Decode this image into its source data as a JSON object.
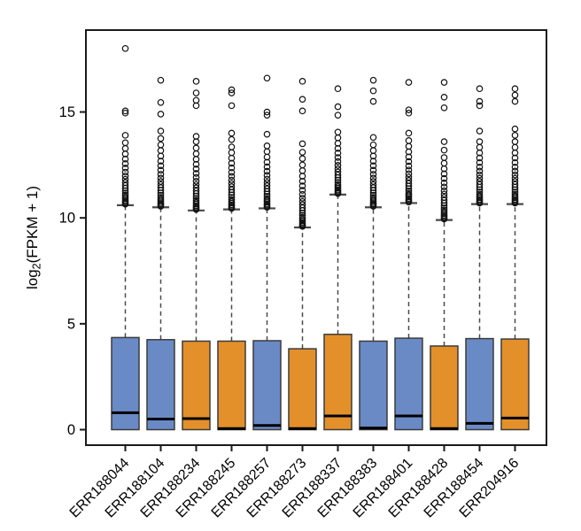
{
  "figure": {
    "background": "#ffffff"
  },
  "chart_data": {
    "type": "boxplot",
    "title": "",
    "xlabel": "",
    "ylabel_parts": {
      "pre": "log",
      "sub": "2",
      "post": "(FPKM + 1)"
    },
    "ylim": [
      0,
      18.9
    ],
    "ytick_labels": [
      "0",
      "5",
      "10",
      "15"
    ],
    "ytick_values": [
      0,
      5,
      10,
      15
    ],
    "grid": false,
    "legend": null,
    "categories": [
      "ERR188044",
      "ERR188104",
      "ERR188234",
      "ERR188245",
      "ERR188257",
      "ERR188273",
      "ERR188337",
      "ERR188383",
      "ERR188401",
      "ERR188428",
      "ERR188454",
      "ERR204916"
    ],
    "group_colors": {
      "blue": "#6a8ac6",
      "orange": "#e3902b"
    },
    "style": {
      "box_border": "#3b3b3b",
      "median_color": "#000000",
      "whisker_color": "#4a4a4a",
      "outlier_color": "#111111",
      "axis_color": "#1a1a1a",
      "text_color": "#000000",
      "background": "#ffffff"
    },
    "boxes": [
      {
        "name": "ERR188044",
        "color_group": "blue",
        "q1": 0,
        "median": 0.8,
        "q3": 4.35,
        "whisker_low": 0,
        "whisker_high": 10.6,
        "outliers": [
          10.65,
          10.7,
          10.76,
          10.82,
          10.9,
          10.98,
          11.07,
          11.17,
          11.28,
          11.4,
          11.53,
          11.67,
          11.82,
          11.98,
          12.16,
          12.35,
          12.56,
          12.78,
          13.02,
          13.28,
          13.55,
          13.9,
          14.95,
          15.05,
          18.0
        ]
      },
      {
        "name": "ERR188104",
        "color_group": "blue",
        "q1": 0,
        "median": 0.5,
        "q3": 4.25,
        "whisker_low": 0,
        "whisker_high": 10.5,
        "outliers": [
          10.55,
          10.6,
          10.66,
          10.72,
          10.8,
          10.88,
          10.97,
          11.07,
          11.18,
          11.3,
          11.43,
          11.57,
          11.72,
          11.88,
          12.06,
          12.25,
          12.46,
          12.68,
          12.92,
          13.18,
          13.45,
          13.75,
          14.1,
          14.9,
          15.45,
          16.5
        ]
      },
      {
        "name": "ERR188234",
        "color_group": "orange",
        "q1": 0,
        "median": 0.52,
        "q3": 4.18,
        "whisker_low": 0,
        "whisker_high": 10.35,
        "outliers": [
          10.4,
          10.45,
          10.51,
          10.57,
          10.65,
          10.73,
          10.82,
          10.92,
          11.03,
          11.15,
          11.28,
          11.42,
          11.57,
          11.73,
          11.91,
          12.1,
          12.31,
          12.53,
          12.77,
          13.03,
          13.3,
          13.6,
          13.85,
          15.3,
          15.55,
          15.9,
          16.45
        ]
      },
      {
        "name": "ERR188245",
        "color_group": "orange",
        "q1": 0,
        "median": 0.05,
        "q3": 4.18,
        "whisker_low": 0,
        "whisker_high": 10.4,
        "outliers": [
          10.45,
          10.5,
          10.56,
          10.62,
          10.7,
          10.78,
          10.87,
          10.97,
          11.08,
          11.2,
          11.33,
          11.47,
          11.62,
          11.78,
          11.96,
          12.15,
          12.36,
          12.58,
          12.82,
          13.08,
          13.35,
          13.7,
          14.0,
          15.3,
          15.9,
          16.05
        ]
      },
      {
        "name": "ERR188257",
        "color_group": "blue",
        "q1": 0,
        "median": 0.2,
        "q3": 4.2,
        "whisker_low": 0,
        "whisker_high": 10.45,
        "outliers": [
          10.5,
          10.55,
          10.61,
          10.67,
          10.75,
          10.83,
          10.92,
          11.02,
          11.13,
          11.25,
          11.38,
          11.52,
          11.67,
          11.83,
          12.01,
          12.2,
          12.41,
          12.63,
          12.87,
          13.13,
          13.4,
          13.95,
          14.85,
          15.0,
          16.6
        ]
      },
      {
        "name": "ERR188273",
        "color_group": "orange",
        "q1": 0,
        "median": 0.05,
        "q3": 3.82,
        "whisker_low": 0,
        "whisker_high": 9.55,
        "outliers": [
          9.6,
          9.65,
          9.71,
          9.77,
          9.85,
          9.93,
          10.02,
          10.12,
          10.23,
          10.35,
          10.48,
          10.62,
          10.77,
          10.93,
          11.11,
          11.3,
          11.51,
          11.73,
          11.97,
          12.23,
          12.5,
          12.8,
          13.1,
          13.5,
          15.05,
          15.6,
          16.45
        ]
      },
      {
        "name": "ERR188337",
        "color_group": "orange",
        "q1": 0,
        "median": 0.65,
        "q3": 4.5,
        "whisker_low": 0,
        "whisker_high": 11.1,
        "outliers": [
          11.15,
          11.2,
          11.26,
          11.32,
          11.4,
          11.48,
          11.57,
          11.67,
          11.78,
          11.9,
          12.03,
          12.17,
          12.32,
          12.48,
          12.66,
          12.85,
          13.06,
          13.28,
          13.52,
          13.78,
          14.05,
          14.85,
          15.25,
          16.1
        ]
      },
      {
        "name": "ERR188383",
        "color_group": "blue",
        "q1": 0,
        "median": 0.08,
        "q3": 4.18,
        "whisker_low": 0,
        "whisker_high": 10.5,
        "outliers": [
          10.55,
          10.6,
          10.66,
          10.72,
          10.8,
          10.88,
          10.97,
          11.07,
          11.18,
          11.3,
          11.43,
          11.57,
          11.72,
          11.88,
          12.06,
          12.25,
          12.46,
          12.68,
          12.92,
          13.18,
          13.45,
          13.8,
          15.5,
          16.0,
          16.5
        ]
      },
      {
        "name": "ERR188401",
        "color_group": "blue",
        "q1": 0,
        "median": 0.65,
        "q3": 4.32,
        "whisker_low": 0,
        "whisker_high": 10.7,
        "outliers": [
          10.75,
          10.8,
          10.86,
          10.92,
          11.0,
          11.08,
          11.17,
          11.27,
          11.38,
          11.5,
          11.63,
          11.77,
          11.92,
          12.08,
          12.26,
          12.45,
          12.66,
          12.88,
          13.12,
          13.38,
          13.65,
          14.0,
          14.95,
          15.1,
          16.4
        ]
      },
      {
        "name": "ERR188428",
        "color_group": "orange",
        "q1": 0,
        "median": 0.05,
        "q3": 3.95,
        "whisker_low": 0,
        "whisker_high": 9.9,
        "outliers": [
          9.95,
          10.0,
          10.06,
          10.12,
          10.2,
          10.28,
          10.37,
          10.47,
          10.58,
          10.7,
          10.83,
          10.97,
          11.12,
          11.28,
          11.46,
          11.65,
          11.86,
          12.08,
          12.32,
          12.58,
          12.85,
          13.2,
          13.6,
          15.2,
          15.7,
          16.4
        ]
      },
      {
        "name": "ERR188454",
        "color_group": "blue",
        "q1": 0,
        "median": 0.3,
        "q3": 4.3,
        "whisker_low": 0,
        "whisker_high": 10.65,
        "outliers": [
          10.7,
          10.75,
          10.81,
          10.87,
          10.95,
          11.03,
          11.12,
          11.22,
          11.33,
          11.45,
          11.58,
          11.72,
          11.87,
          12.03,
          12.21,
          12.4,
          12.61,
          12.83,
          13.07,
          13.33,
          13.6,
          14.1,
          15.3,
          15.5,
          16.1
        ]
      },
      {
        "name": "ERR204916",
        "color_group": "orange",
        "q1": 0,
        "median": 0.55,
        "q3": 4.28,
        "whisker_low": 0,
        "whisker_high": 10.65,
        "outliers": [
          10.7,
          10.75,
          10.81,
          10.87,
          10.95,
          11.03,
          11.12,
          11.22,
          11.33,
          11.45,
          11.58,
          11.72,
          11.87,
          12.03,
          12.21,
          12.4,
          12.61,
          12.83,
          13.07,
          13.33,
          13.6,
          13.9,
          14.2,
          15.5,
          15.8,
          16.1
        ]
      }
    ]
  }
}
